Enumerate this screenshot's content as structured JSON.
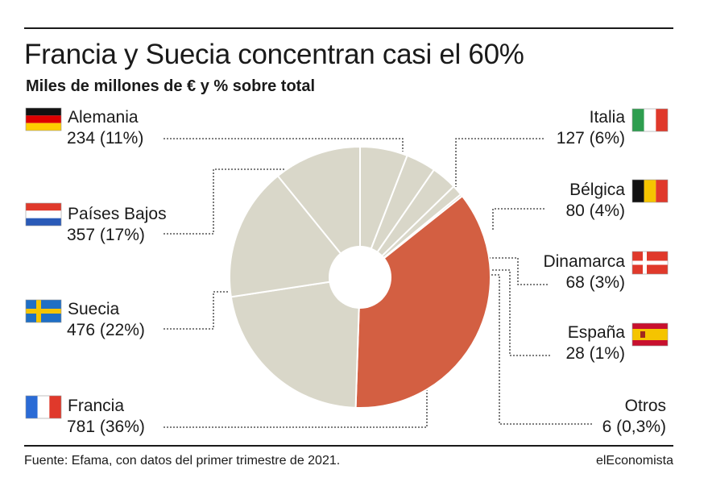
{
  "header": {
    "title": "Francia y Suecia concentran casi el 60%",
    "subtitle": "Miles de millones de € y % sobre total"
  },
  "footer": {
    "source": "Fuente: Efama, con datos del primer trimestre de 2021.",
    "brand": "elEconomista"
  },
  "colors": {
    "highlight": "#d35f42",
    "slice": "#d9d7c9",
    "border": "#ffffff",
    "leader": "#333333"
  },
  "chart_data": {
    "type": "pie",
    "donut": true,
    "slices": [
      {
        "name": "Italia",
        "value": 127,
        "pct": "6%",
        "display": "127 (6%)",
        "flag": "flag-italy",
        "highlight": false
      },
      {
        "name": "Bélgica",
        "value": 80,
        "pct": "4%",
        "display": "80 (4%)",
        "flag": "flag-belgium",
        "highlight": false
      },
      {
        "name": "Dinamarca",
        "value": 68,
        "pct": "3%",
        "display": "68 (3%)",
        "flag": "flag-denmark",
        "highlight": false
      },
      {
        "name": "España",
        "value": 28,
        "pct": "1%",
        "display": "28 (1%)",
        "flag": "flag-spain",
        "highlight": false
      },
      {
        "name": "Otros",
        "value": 6,
        "pct": "0,3%",
        "display": "6 (0,3%)",
        "flag": "",
        "highlight": false
      },
      {
        "name": "Francia",
        "value": 781,
        "pct": "36%",
        "display": "781 (36%)",
        "flag": "flag-france",
        "highlight": true
      },
      {
        "name": "Suecia",
        "value": 476,
        "pct": "22%",
        "display": "476 (22%)",
        "flag": "flag-sweden",
        "highlight": false
      },
      {
        "name": "Países Bajos",
        "value": 357,
        "pct": "17%",
        "display": "357 (17%)",
        "flag": "flag-netherlands",
        "highlight": false
      },
      {
        "name": "Alemania",
        "value": 234,
        "pct": "11%",
        "display": "234 (11%)",
        "flag": "flag-germany",
        "highlight": false
      }
    ]
  }
}
